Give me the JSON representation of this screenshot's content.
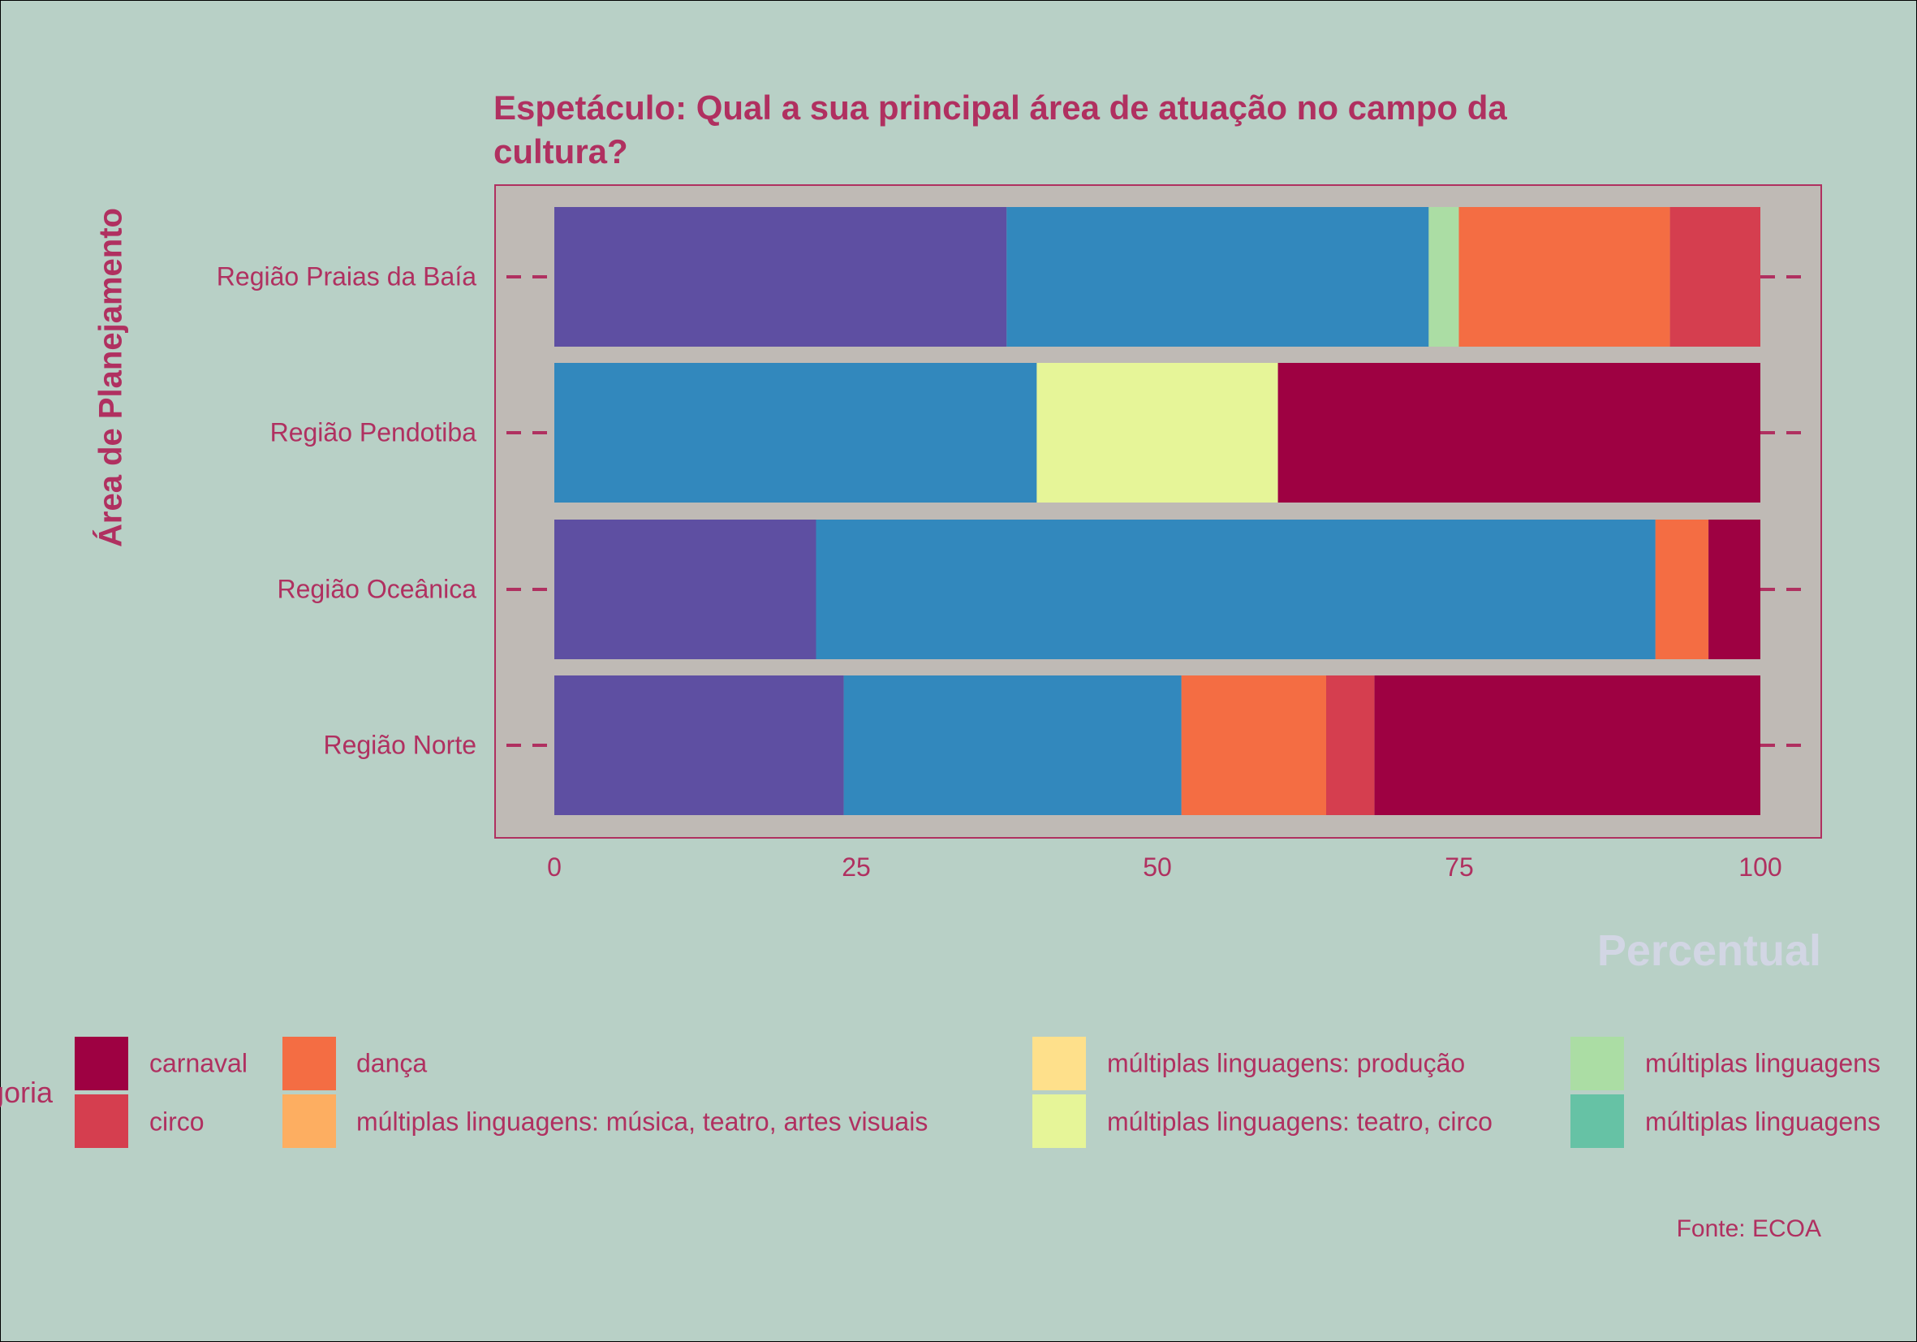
{
  "chart_data": {
    "type": "bar",
    "orientation": "horizontal",
    "stacked": true,
    "title": "Espetáculo: Qual a sua principal área de atuação no campo da cultura?",
    "xlabel": "Percentual",
    "ylabel": "Área de Planejamento",
    "xlim": [
      0,
      100
    ],
    "x_ticks": [
      "0",
      "25",
      "50",
      "75",
      "100"
    ],
    "categories": [
      "Região Praias da Baía",
      "Região Pendotiba",
      "Região Oceânica",
      "Região Norte"
    ],
    "legend_title": "Categoria",
    "caption": "Fonte: ECOA",
    "series": [
      {
        "name": "carnaval",
        "color": "#9e0142",
        "values": [
          0,
          40,
          4.3,
          32
        ]
      },
      {
        "name": "circo",
        "color": "#d53e4f",
        "values": [
          7.5,
          0,
          0,
          4
        ]
      },
      {
        "name": "dança",
        "color": "#f46d43",
        "values": [
          17.5,
          0,
          4.4,
          12
        ]
      },
      {
        "name": "múltiplas linguagens: música, teatro, artes visuais",
        "color": "#fdae61",
        "values": [
          0,
          0,
          0,
          0
        ]
      },
      {
        "name": "múltiplas linguagens: produção",
        "color": "#fee08b",
        "values": [
          0,
          0,
          0,
          0
        ]
      },
      {
        "name": "múltiplas linguagens: teatro, circo",
        "color": "#e6f598",
        "values": [
          0,
          20,
          0,
          0
        ]
      },
      {
        "name": "múltiplas linguagens",
        "color": "#abdda4",
        "values": [
          2.5,
          0,
          0,
          0
        ]
      },
      {
        "name": "múltiplas linguagens",
        "color": "#66c2a5",
        "values": [
          0,
          0,
          0,
          0
        ]
      },
      {
        "name": "",
        "color": "#3288bd",
        "values": [
          35,
          40,
          69.6,
          28
        ]
      },
      {
        "name": "",
        "color": "#5e4fa2",
        "values": [
          37.5,
          0,
          21.7,
          24
        ]
      }
    ],
    "legend_items": [
      {
        "label": "carnaval",
        "color": "#9e0142"
      },
      {
        "label": "circo",
        "color": "#d53e4f"
      },
      {
        "label": "dança",
        "color": "#f46d43"
      },
      {
        "label": "múltiplas linguagens: música, teatro, artes visuais",
        "color": "#fdae61"
      },
      {
        "label": "múltiplas linguagens: produção",
        "color": "#fee08b"
      },
      {
        "label": "múltiplas linguagens: teatro, circo",
        "color": "#e6f598"
      },
      {
        "label": "múltiplas linguagens",
        "color": "#abdda4"
      },
      {
        "label": "múltiplas linguagens",
        "color": "#66c2a5"
      }
    ],
    "colors": {
      "page_background": "#b8d0c6",
      "panel_background": "#bfbab5",
      "panel_border": "#b03060",
      "text": "#b03060",
      "xlabel": "#d2d6e4"
    }
  }
}
